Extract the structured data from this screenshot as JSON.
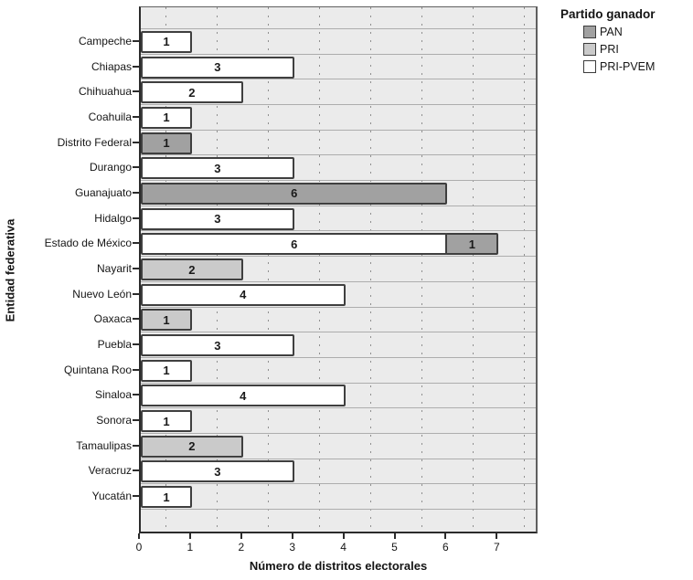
{
  "legend": {
    "title": "Partido ganador",
    "entries": [
      {
        "label": "PAN",
        "color": "#a1a1a1"
      },
      {
        "label": "PRI",
        "color": "#cacaca"
      },
      {
        "label": "PRI-PVEM",
        "color": "#ffffff"
      }
    ]
  },
  "chart_data": {
    "type": "bar",
    "orientation": "horizontal",
    "stacked": true,
    "title": "",
    "xlabel": "Número de distritos electorales",
    "ylabel": "Entidad federativa",
    "legend_title": "Partido ganador",
    "legend_position": "top-right-outside",
    "grid": true,
    "xlim": [
      0,
      7.8
    ],
    "x_ticks": [
      0,
      1,
      2,
      3,
      4,
      5,
      6,
      7
    ],
    "categories": [
      "Campeche",
      "Chiapas",
      "Chihuahua",
      "Coahuila",
      "Distrito Federal",
      "Durango",
      "Guanajuato",
      "Hidalgo",
      "Estado de México",
      "Nayarit",
      "Nuevo León",
      "Oaxaca",
      "Puebla",
      "Quintana Roo",
      "Sinaloa",
      "Sonora",
      "Tamaulipas",
      "Veracruz",
      "Yucatán"
    ],
    "stack_order": [
      "PRI-PVEM",
      "PRI",
      "PAN"
    ],
    "series": [
      {
        "name": "PAN",
        "color": "#a1a1a1",
        "values": [
          0,
          0,
          0,
          0,
          1,
          0,
          6,
          0,
          1,
          0,
          0,
          0,
          0,
          0,
          0,
          0,
          0,
          0,
          0
        ]
      },
      {
        "name": "PRI",
        "color": "#cacaca",
        "values": [
          0,
          0,
          0,
          0,
          0,
          0,
          0,
          0,
          0,
          2,
          0,
          1,
          0,
          0,
          0,
          0,
          2,
          0,
          0
        ]
      },
      {
        "name": "PRI-PVEM",
        "color": "#ffffff",
        "values": [
          1,
          3,
          2,
          1,
          0,
          3,
          0,
          3,
          6,
          0,
          4,
          0,
          3,
          1,
          4,
          1,
          0,
          3,
          1
        ]
      }
    ]
  }
}
